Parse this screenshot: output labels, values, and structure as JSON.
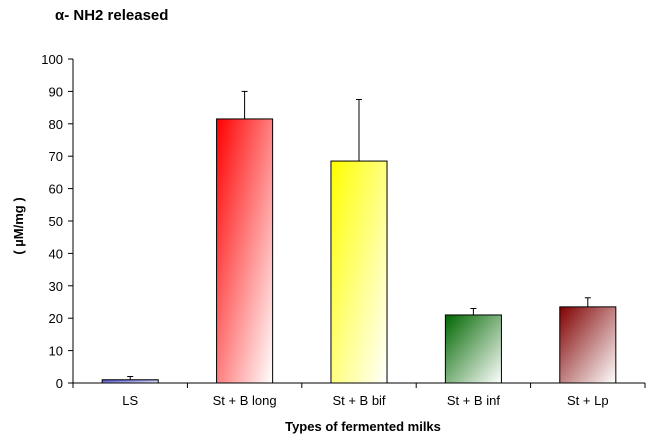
{
  "chart_data": {
    "type": "bar",
    "title": "α- NH2 released",
    "xlabel": "Types of fermented milks",
    "ylabel": "( µM/mg )",
    "ylim": [
      0,
      100
    ],
    "yticks": [
      0,
      10,
      20,
      30,
      40,
      50,
      60,
      70,
      80,
      90,
      100
    ],
    "grid": false,
    "legend": "none",
    "categories": [
      "LS",
      "St + B long",
      "St + B bif",
      "St + B inf",
      "St + Lp"
    ],
    "series": [
      {
        "values": [
          1,
          81.5,
          68.5,
          21,
          23.5
        ],
        "error": [
          1,
          8.5,
          19,
          2,
          2.8
        ],
        "colors": [
          "#3333cc",
          "#ff0000",
          "#ffff00",
          "#006600",
          "#800000"
        ]
      }
    ]
  }
}
